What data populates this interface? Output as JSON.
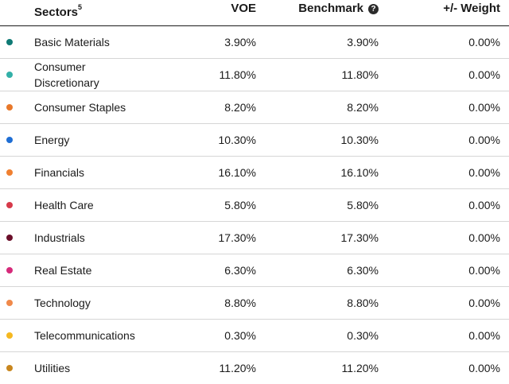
{
  "header": {
    "sectors_label": "Sectors",
    "sectors_footnote": "5",
    "voe_label": "VOE",
    "benchmark_label": "Benchmark",
    "help_glyph": "?",
    "weight_label": "+/- Weight"
  },
  "rows": [
    {
      "name": "Basic Materials",
      "voe": "3.90%",
      "benchmark": "3.90%",
      "weight": "0.00%",
      "color": "#0f7a75"
    },
    {
      "name": "Consumer Discretionary",
      "voe": "11.80%",
      "benchmark": "11.80%",
      "weight": "0.00%",
      "color": "#33b0a8"
    },
    {
      "name": "Consumer Staples",
      "voe": "8.20%",
      "benchmark": "8.20%",
      "weight": "0.00%",
      "color": "#e8782a"
    },
    {
      "name": "Energy",
      "voe": "10.30%",
      "benchmark": "10.30%",
      "weight": "0.00%",
      "color": "#1f6ed4"
    },
    {
      "name": "Financials",
      "voe": "16.10%",
      "benchmark": "16.10%",
      "weight": "0.00%",
      "color": "#f08030"
    },
    {
      "name": "Health Care",
      "voe": "5.80%",
      "benchmark": "5.80%",
      "weight": "0.00%",
      "color": "#d63a4a"
    },
    {
      "name": "Industrials",
      "voe": "17.30%",
      "benchmark": "17.30%",
      "weight": "0.00%",
      "color": "#6b0f2a"
    },
    {
      "name": "Real Estate",
      "voe": "6.30%",
      "benchmark": "6.30%",
      "weight": "0.00%",
      "color": "#d62a7a"
    },
    {
      "name": "Technology",
      "voe": "8.80%",
      "benchmark": "8.80%",
      "weight": "0.00%",
      "color": "#f0894a"
    },
    {
      "name": "Telecommunications",
      "voe": "0.30%",
      "benchmark": "0.30%",
      "weight": "0.00%",
      "color": "#f5b820"
    },
    {
      "name": "Utilities",
      "voe": "11.20%",
      "benchmark": "11.20%",
      "weight": "0.00%",
      "color": "#c8861e"
    }
  ]
}
